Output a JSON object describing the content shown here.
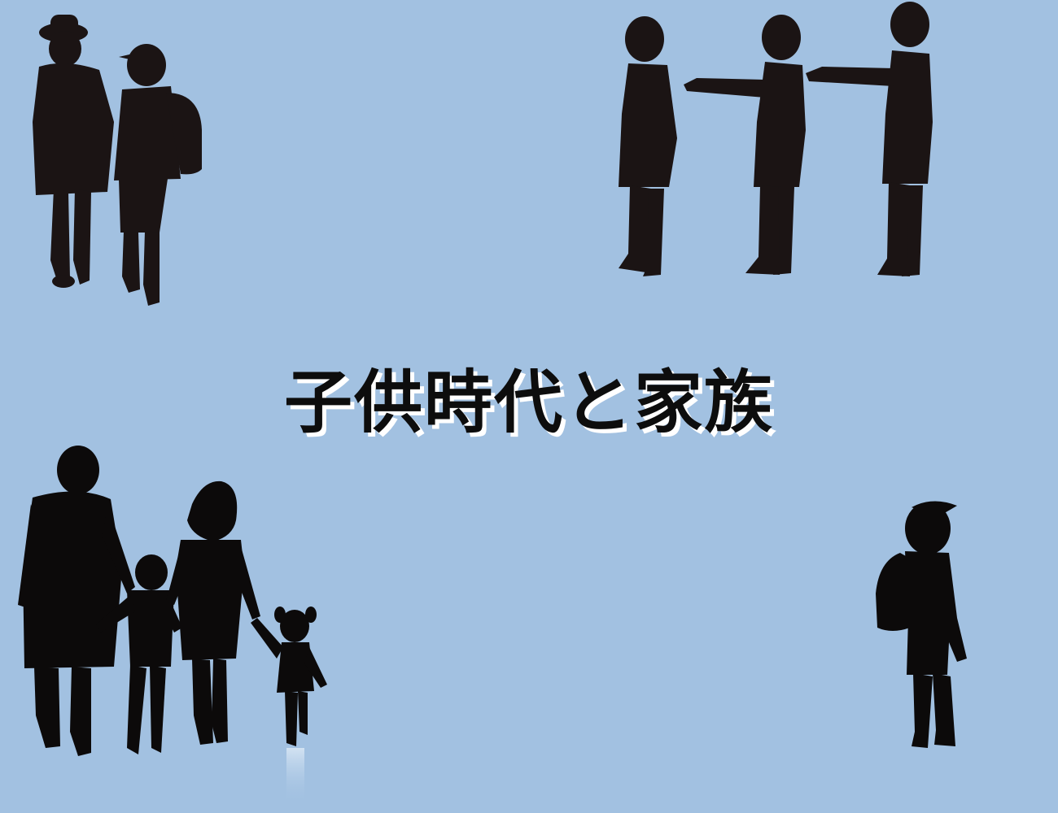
{
  "title": "子供時代と家族",
  "colors": {
    "background": "#a2c1e1",
    "silhouette": "#1b1414",
    "title_text": "#0d0d0d",
    "title_shadow": "#ffffff"
  },
  "illustrations": [
    "two-children-walking-silhouette",
    "three-boys-in-line-silhouette",
    "family-holding-hands-silhouette",
    "boy-with-backpack-silhouette"
  ]
}
